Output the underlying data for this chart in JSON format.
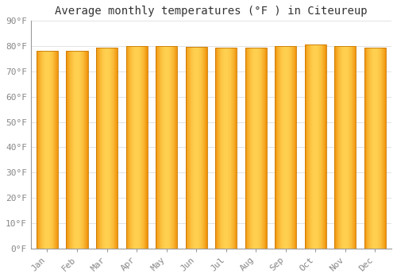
{
  "title": "Average monthly temperatures (°F ) in Citeureup",
  "months": [
    "Jan",
    "Feb",
    "Mar",
    "Apr",
    "May",
    "Jun",
    "Jul",
    "Aug",
    "Sep",
    "Oct",
    "Nov",
    "Dec"
  ],
  "values": [
    78.3,
    78.3,
    79.3,
    80.1,
    80.1,
    79.7,
    79.3,
    79.5,
    80.1,
    80.6,
    80.1,
    79.3
  ],
  "ylim": [
    0,
    90
  ],
  "yticks": [
    0,
    10,
    20,
    30,
    40,
    50,
    60,
    70,
    80,
    90
  ],
  "ytick_labels": [
    "0°F",
    "10°F",
    "20°F",
    "30°F",
    "40°F",
    "50°F",
    "60°F",
    "70°F",
    "80°F",
    "90°F"
  ],
  "bar_color_center": "#FFD050",
  "bar_color_edge": "#F0920A",
  "bar_edge_color": "#C87800",
  "background_color": "#FFFFFF",
  "plot_bg_color": "#FFFFFF",
  "grid_color": "#DDDDDD",
  "title_fontsize": 10,
  "tick_fontsize": 8,
  "bar_width": 0.72
}
